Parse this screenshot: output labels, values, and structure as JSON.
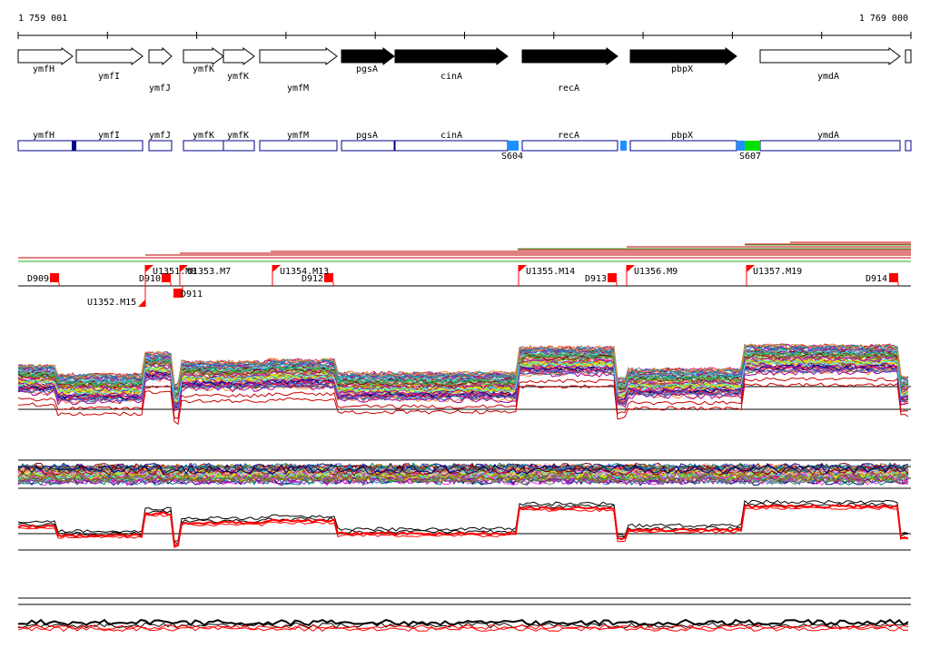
{
  "coords": {
    "start": "1 759 001",
    "end": "1 769 000"
  },
  "genes": [
    {
      "name": "ymfH",
      "filled": false
    },
    {
      "name": "ymfI",
      "filled": false
    },
    {
      "name": "ymfJ",
      "filled": false
    },
    {
      "name": "ymfK",
      "filled": false
    },
    {
      "name": "ymfK",
      "filled": false
    },
    {
      "name": "ymfM",
      "filled": false
    },
    {
      "name": "pgsA",
      "filled": true
    },
    {
      "name": "cinA",
      "filled": true
    },
    {
      "name": "recA",
      "filled": true
    },
    {
      "name": "pbpX",
      "filled": true
    },
    {
      "name": "ymdA",
      "filled": false
    }
  ],
  "segments": {
    "labels": [
      "ymfH",
      "ymfI",
      "ymfJ",
      "ymfK",
      "ymfK",
      "ymfM",
      "pgsA",
      "cinA",
      "recA",
      "pbpX",
      "ymdA"
    ],
    "sites": [
      "S604",
      "S607"
    ]
  },
  "features": {
    "downstream": [
      "D909",
      "D910",
      "D911",
      "D912",
      "D913",
      "D914"
    ],
    "upstream": [
      "U1351.M8",
      "U1352.M15",
      "U1353.M7",
      "U1354.M13",
      "U1355.M14",
      "U1356.M9",
      "U1357.M19"
    ]
  },
  "colors": {
    "filled_gene": "#000000",
    "segment_border": "#00008b",
    "marker_red": "#ff0000",
    "site_blue": "#1e90ff",
    "site_green": "#00e000",
    "dark_block": "#00008b"
  }
}
